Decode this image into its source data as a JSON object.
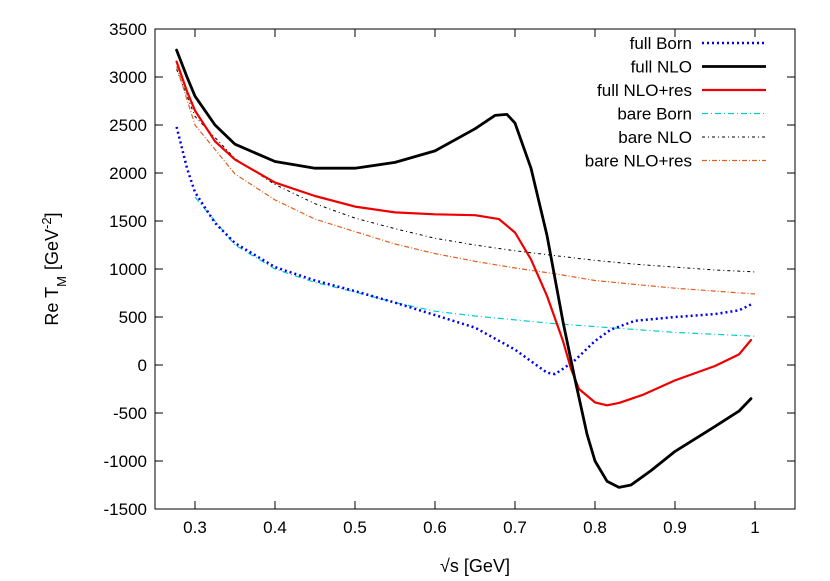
{
  "chart_data": {
    "type": "line",
    "xlabel_prefix": "√s [GeV]",
    "ylabel_main": "Re T",
    "ylabel_sub": "M",
    "ylabel_unit": "[GeV",
    "ylabel_exp": "-2",
    "ylabel_close": "]",
    "xlim": [
      0.25,
      1.05
    ],
    "ylim": [
      -1500,
      3500
    ],
    "xticks": [
      0.3,
      0.4,
      0.5,
      0.6,
      0.7,
      0.8,
      0.9,
      1
    ],
    "xtick_labels": [
      "0.3",
      "0.4",
      "0.5",
      "0.6",
      "0.7",
      "0.8",
      "0.9",
      "1"
    ],
    "yticks": [
      -1500,
      -1000,
      -500,
      0,
      500,
      1000,
      1500,
      2000,
      2500,
      3000,
      3500
    ],
    "ytick_labels": [
      "-1500",
      "-1000",
      "-500",
      "0",
      "500",
      "1000",
      "1500",
      "2000",
      "2500",
      "3000",
      "3500"
    ],
    "grid": false,
    "legend_position": "top-right",
    "series": [
      {
        "name": "full Born",
        "color": "#0000ee",
        "dash": "2,3",
        "width": 2.5,
        "points": [
          [
            0.277,
            2480
          ],
          [
            0.29,
            2050
          ],
          [
            0.3,
            1800
          ],
          [
            0.325,
            1480
          ],
          [
            0.35,
            1270
          ],
          [
            0.4,
            1020
          ],
          [
            0.45,
            880
          ],
          [
            0.5,
            770
          ],
          [
            0.55,
            650
          ],
          [
            0.6,
            520
          ],
          [
            0.65,
            390
          ],
          [
            0.7,
            160
          ],
          [
            0.72,
            40
          ],
          [
            0.74,
            -80
          ],
          [
            0.75,
            -95
          ],
          [
            0.76,
            -40
          ],
          [
            0.775,
            50
          ],
          [
            0.8,
            250
          ],
          [
            0.82,
            370
          ],
          [
            0.85,
            460
          ],
          [
            0.9,
            500
          ],
          [
            0.95,
            530
          ],
          [
            0.98,
            570
          ],
          [
            0.995,
            630
          ]
        ]
      },
      {
        "name": "full NLO",
        "color": "#000000",
        "dash": "",
        "width": 2.8,
        "points": [
          [
            0.277,
            3280
          ],
          [
            0.29,
            3000
          ],
          [
            0.3,
            2800
          ],
          [
            0.325,
            2500
          ],
          [
            0.35,
            2300
          ],
          [
            0.4,
            2120
          ],
          [
            0.45,
            2050
          ],
          [
            0.5,
            2050
          ],
          [
            0.55,
            2110
          ],
          [
            0.6,
            2230
          ],
          [
            0.65,
            2460
          ],
          [
            0.675,
            2600
          ],
          [
            0.69,
            2610
          ],
          [
            0.7,
            2520
          ],
          [
            0.72,
            2050
          ],
          [
            0.74,
            1350
          ],
          [
            0.76,
            450
          ],
          [
            0.775,
            -150
          ],
          [
            0.79,
            -720
          ],
          [
            0.8,
            -1000
          ],
          [
            0.815,
            -1210
          ],
          [
            0.83,
            -1275
          ],
          [
            0.845,
            -1250
          ],
          [
            0.87,
            -1100
          ],
          [
            0.9,
            -900
          ],
          [
            0.95,
            -640
          ],
          [
            0.98,
            -480
          ],
          [
            0.995,
            -350
          ]
        ]
      },
      {
        "name": "full NLO+res",
        "color": "#ee0000",
        "dash": "",
        "width": 2.2,
        "points": [
          [
            0.277,
            3160
          ],
          [
            0.29,
            2850
          ],
          [
            0.3,
            2650
          ],
          [
            0.325,
            2330
          ],
          [
            0.35,
            2140
          ],
          [
            0.4,
            1900
          ],
          [
            0.45,
            1760
          ],
          [
            0.5,
            1650
          ],
          [
            0.55,
            1590
          ],
          [
            0.6,
            1570
          ],
          [
            0.65,
            1560
          ],
          [
            0.68,
            1520
          ],
          [
            0.7,
            1380
          ],
          [
            0.72,
            1100
          ],
          [
            0.74,
            720
          ],
          [
            0.76,
            250
          ],
          [
            0.77,
            -40
          ],
          [
            0.78,
            -250
          ],
          [
            0.8,
            -390
          ],
          [
            0.815,
            -420
          ],
          [
            0.83,
            -395
          ],
          [
            0.86,
            -310
          ],
          [
            0.9,
            -160
          ],
          [
            0.95,
            -10
          ],
          [
            0.98,
            110
          ],
          [
            0.995,
            260
          ]
        ]
      },
      {
        "name": "bare Born",
        "color": "#00cccc",
        "dash": "6,3,1,3",
        "width": 1.2,
        "points": [
          [
            0.3,
            1750
          ],
          [
            0.35,
            1250
          ],
          [
            0.4,
            1000
          ],
          [
            0.45,
            860
          ],
          [
            0.5,
            760
          ],
          [
            0.55,
            650
          ],
          [
            0.6,
            560
          ],
          [
            0.65,
            510
          ],
          [
            0.7,
            470
          ],
          [
            0.75,
            430
          ],
          [
            0.8,
            400
          ],
          [
            0.85,
            370
          ],
          [
            0.9,
            340
          ],
          [
            0.95,
            320
          ],
          [
            1,
            300
          ]
        ]
      },
      {
        "name": "bare NLO",
        "color": "#000000",
        "dash": "3,3,1,3",
        "width": 1.0,
        "points": [
          [
            0.277,
            3080
          ],
          [
            0.3,
            2590
          ],
          [
            0.35,
            2150
          ],
          [
            0.4,
            1880
          ],
          [
            0.45,
            1680
          ],
          [
            0.5,
            1530
          ],
          [
            0.55,
            1420
          ],
          [
            0.6,
            1320
          ],
          [
            0.65,
            1250
          ],
          [
            0.7,
            1190
          ],
          [
            0.75,
            1140
          ],
          [
            0.8,
            1090
          ],
          [
            0.85,
            1050
          ],
          [
            0.9,
            1020
          ],
          [
            0.95,
            990
          ],
          [
            1,
            970
          ]
        ]
      },
      {
        "name": "bare NLO+res",
        "color": "#e06020",
        "dash": "5,2,1,2",
        "width": 1.2,
        "points": [
          [
            0.277,
            3110
          ],
          [
            0.3,
            2500
          ],
          [
            0.35,
            1990
          ],
          [
            0.4,
            1720
          ],
          [
            0.45,
            1520
          ],
          [
            0.5,
            1390
          ],
          [
            0.55,
            1260
          ],
          [
            0.6,
            1160
          ],
          [
            0.65,
            1080
          ],
          [
            0.7,
            1010
          ],
          [
            0.75,
            950
          ],
          [
            0.8,
            880
          ],
          [
            0.85,
            840
          ],
          [
            0.9,
            800
          ],
          [
            0.95,
            770
          ],
          [
            1,
            740
          ]
        ]
      }
    ]
  }
}
